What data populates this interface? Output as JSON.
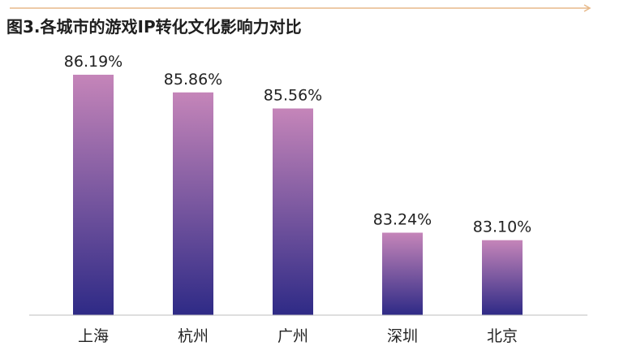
{
  "chart_data": {
    "type": "bar",
    "title": "图3.各城市的游戏IP转化文化影响力对比",
    "xlabel": "",
    "ylabel": "",
    "categories": [
      "上海",
      "杭州",
      "广州",
      "深圳",
      "北京"
    ],
    "values": [
      86.19,
      85.86,
      85.56,
      83.24,
      83.1
    ],
    "value_labels": [
      "86.19%",
      "85.86%",
      "85.56%",
      "83.24%",
      "83.10%"
    ],
    "ylim": [
      81.7,
      86.19
    ],
    "grid": false,
    "legend": "none",
    "colors": {
      "bar_top": "#c585b9",
      "bar_bottom": "#2e2a86",
      "accent_line": "#e7b98a",
      "baseline": "#bdbdbd"
    }
  }
}
